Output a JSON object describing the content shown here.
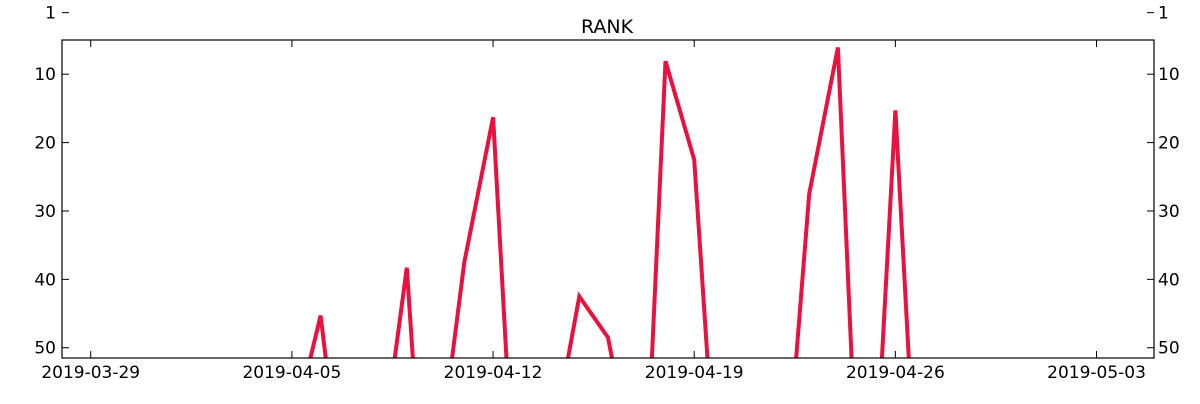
{
  "chart_data": {
    "type": "line",
    "title": "RANK",
    "xlabel": "",
    "ylabel": "",
    "y_inverted": true,
    "ylim": [
      51.5,
      5.0
    ],
    "yticks": [
      1,
      10,
      20,
      30,
      40,
      50
    ],
    "ytick_labels": [
      "1",
      "10",
      "20",
      "30",
      "40",
      "50"
    ],
    "xlim": [
      "2019-03-28",
      "2019-05-05"
    ],
    "xticks": [
      "2019-03-29",
      "2019-04-05",
      "2019-04-12",
      "2019-04-19",
      "2019-04-26",
      "2019-05-03"
    ],
    "xtick_labels": [
      "2019-03-29",
      "2019-04-05",
      "2019-04-12",
      "2019-04-19",
      "2019-04-26",
      "2019-05-03"
    ],
    "grid": false,
    "line_color": "#E8113F",
    "series": [
      {
        "segments": [
          [
            [
              "2019-04-05T12:00",
              54
            ],
            [
              "2019-04-06T00:00",
              45.3
            ],
            [
              "2019-04-06T06:00",
              54
            ]
          ],
          [
            [
              "2019-04-08T12:00",
              54
            ],
            [
              "2019-04-09T00:00",
              38.3
            ],
            [
              "2019-04-09T06:00",
              54
            ]
          ],
          [
            [
              "2019-04-10T12:00",
              54
            ],
            [
              "2019-04-11T00:00",
              37.5
            ],
            [
              "2019-04-12T00:00",
              16.3
            ],
            [
              "2019-04-12T12:00",
              54
            ]
          ],
          [
            [
              "2019-04-14T12:00",
              54
            ],
            [
              "2019-04-15T00:00",
              42.5
            ],
            [
              "2019-04-16T00:00",
              48.5
            ],
            [
              "2019-04-16T06:00",
              54
            ]
          ],
          [
            [
              "2019-04-17T12:00",
              54
            ],
            [
              "2019-04-18T00:00",
              8.1
            ],
            [
              "2019-04-19T00:00",
              22.5
            ],
            [
              "2019-04-19T12:00",
              54
            ]
          ],
          [
            [
              "2019-04-22T12:00",
              54
            ],
            [
              "2019-04-23T00:00",
              27.5
            ],
            [
              "2019-04-24T00:00",
              6.1
            ],
            [
              "2019-04-24T12:00",
              54
            ]
          ],
          [
            [
              "2019-04-25T12:00",
              54
            ],
            [
              "2019-04-26T00:00",
              15.3
            ],
            [
              "2019-04-26T12:00",
              54
            ]
          ]
        ]
      }
    ]
  }
}
